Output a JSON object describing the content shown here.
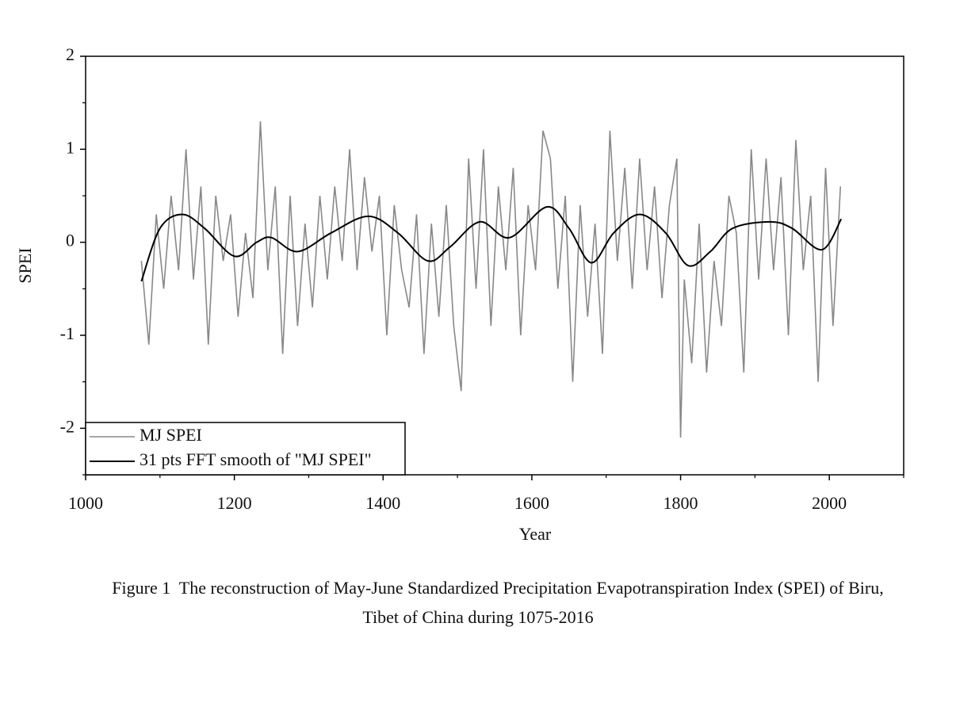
{
  "chart_data": {
    "type": "line",
    "x_label": "Year",
    "y_label": "SPEI",
    "caption": [
      "Figure 1  The reconstruction of May-June Standardized Precipitation Evapotranspiration Index (SPEI) of Biru,",
      "Tibet of China during 1075-2016"
    ],
    "xlim": [
      1000,
      2100
    ],
    "xticks": [
      1000,
      1200,
      1400,
      1600,
      1800,
      2000
    ],
    "ylim": [
      -2.5,
      2
    ],
    "yticks": [
      -2,
      -1,
      0,
      1,
      2
    ],
    "legend": "lower left",
    "series": [
      {
        "name": "MJ SPEI",
        "color": "#888888",
        "x": [
          1075,
          1085,
          1095,
          1105,
          1115,
          1125,
          1135,
          1145,
          1155,
          1165,
          1175,
          1185,
          1195,
          1205,
          1215,
          1225,
          1235,
          1245,
          1255,
          1265,
          1275,
          1285,
          1295,
          1305,
          1315,
          1325,
          1335,
          1345,
          1355,
          1365,
          1375,
          1385,
          1395,
          1405,
          1415,
          1425,
          1435,
          1445,
          1455,
          1465,
          1475,
          1485,
          1495,
          1505,
          1515,
          1525,
          1535,
          1545,
          1555,
          1565,
          1575,
          1585,
          1595,
          1605,
          1615,
          1625,
          1635,
          1645,
          1655,
          1665,
          1675,
          1685,
          1695,
          1705,
          1715,
          1725,
          1735,
          1745,
          1755,
          1765,
          1775,
          1785,
          1795,
          1800,
          1805,
          1815,
          1825,
          1835,
          1845,
          1855,
          1865,
          1875,
          1885,
          1895,
          1905,
          1915,
          1925,
          1935,
          1945,
          1955,
          1965,
          1975,
          1985,
          1995,
          2005,
          2015
        ],
        "values": [
          -0.2,
          -1.1,
          0.3,
          -0.5,
          0.5,
          -0.3,
          1.0,
          -0.4,
          0.6,
          -1.1,
          0.5,
          -0.2,
          0.3,
          -0.8,
          0.1,
          -0.6,
          1.3,
          -0.3,
          0.6,
          -1.2,
          0.5,
          -0.9,
          0.2,
          -0.7,
          0.5,
          -0.4,
          0.6,
          -0.2,
          1.0,
          -0.3,
          0.7,
          -0.1,
          0.5,
          -1.0,
          0.4,
          -0.3,
          -0.7,
          0.3,
          -1.2,
          0.2,
          -0.8,
          0.4,
          -0.9,
          -1.6,
          0.9,
          -0.5,
          1.0,
          -0.9,
          0.6,
          -0.3,
          0.8,
          -1.0,
          0.4,
          -0.3,
          1.2,
          0.9,
          -0.5,
          0.5,
          -1.5,
          0.4,
          -0.8,
          0.2,
          -1.2,
          1.2,
          -0.2,
          0.8,
          -0.5,
          0.9,
          -0.3,
          0.6,
          -0.6,
          0.4,
          0.9,
          -2.1,
          -0.4,
          -1.3,
          0.2,
          -1.4,
          -0.2,
          -0.9,
          0.5,
          0.1,
          -1.4,
          1.0,
          -0.4,
          0.9,
          -0.3,
          0.7,
          -1.0,
          1.1,
          -0.3,
          0.5,
          -1.5,
          0.8,
          -0.9,
          0.6
        ]
      },
      {
        "name": "31 pts FFT smooth of \"MJ SPEI\"",
        "color": "#000000",
        "x": [
          1075,
          1100,
          1130,
          1160,
          1200,
          1230,
          1250,
          1285,
          1330,
          1380,
          1420,
          1460,
          1490,
          1530,
          1570,
          1620,
          1650,
          1680,
          1710,
          1745,
          1780,
          1810,
          1840,
          1870,
          1920,
          1950,
          1990,
          2016
        ],
        "values": [
          -0.42,
          0.15,
          0.3,
          0.15,
          -0.15,
          0.0,
          0.05,
          -0.1,
          0.1,
          0.28,
          0.1,
          -0.2,
          -0.05,
          0.22,
          0.05,
          0.38,
          0.15,
          -0.22,
          0.1,
          0.3,
          0.1,
          -0.25,
          -0.1,
          0.15,
          0.22,
          0.15,
          -0.08,
          0.25
        ]
      }
    ]
  }
}
